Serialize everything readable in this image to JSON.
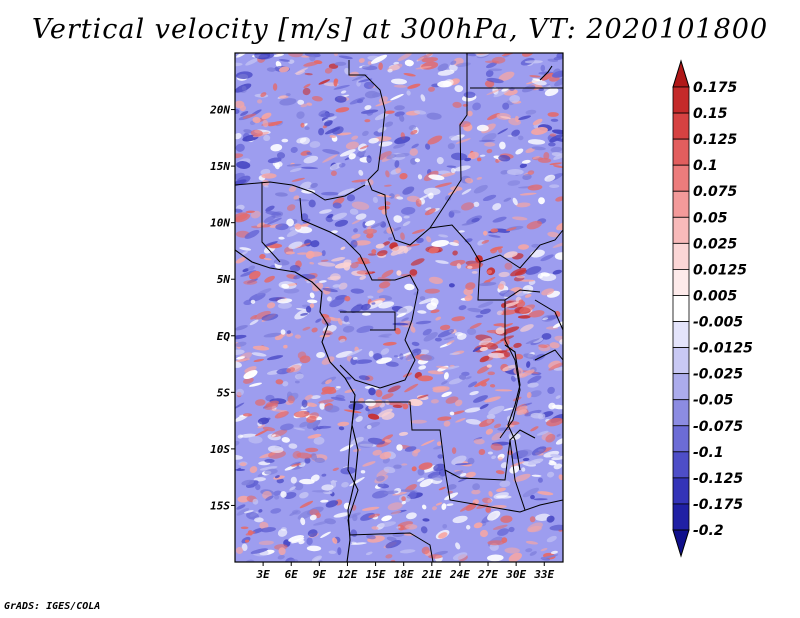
{
  "title": "Vertical velocity [m/s] at 300hPa, VT: 2020101800",
  "credit": "GrADS: IGES/COLA",
  "map": {
    "variable": "Vertical velocity",
    "units": "m/s",
    "level": "300hPa",
    "valid_time": "2020101800",
    "lon_range_deg": [
      0,
      35
    ],
    "lat_range_deg": [
      -20,
      25
    ],
    "lat_ticks": [
      {
        "value": 20,
        "label": "20N"
      },
      {
        "value": 15,
        "label": "15N"
      },
      {
        "value": 10,
        "label": "10N"
      },
      {
        "value": 5,
        "label": "5N"
      },
      {
        "value": 0,
        "label": "EQ"
      },
      {
        "value": -5,
        "label": "5S"
      },
      {
        "value": -10,
        "label": "10S"
      },
      {
        "value": -15,
        "label": "15S"
      }
    ],
    "lon_ticks": [
      {
        "value": 3,
        "label": "3E"
      },
      {
        "value": 6,
        "label": "6E"
      },
      {
        "value": 9,
        "label": "9E"
      },
      {
        "value": 12,
        "label": "12E"
      },
      {
        "value": 15,
        "label": "15E"
      },
      {
        "value": 18,
        "label": "18E"
      },
      {
        "value": 21,
        "label": "21E"
      },
      {
        "value": 24,
        "label": "24E"
      },
      {
        "value": 27,
        "label": "27E"
      },
      {
        "value": 30,
        "label": "30E"
      },
      {
        "value": 33,
        "label": "33E"
      }
    ]
  },
  "colorbar": {
    "labels": [
      "0.175",
      "0.15",
      "0.125",
      "0.1",
      "0.075",
      "0.05",
      "0.025",
      "0.0125",
      "0.005",
      "-0.005",
      "-0.0125",
      "-0.025",
      "-0.05",
      "-0.075",
      "-0.1",
      "-0.125",
      "-0.175",
      "-0.2"
    ],
    "colors": [
      "#b01818",
      "#c42a2a",
      "#d64242",
      "#e25e5e",
      "#ec7c7c",
      "#f39a9a",
      "#f8baba",
      "#fbd6d6",
      "#fdeaea",
      "#ffffff",
      "#e4e4fb",
      "#c9c9f4",
      "#acacec",
      "#8c8ce2",
      "#6c6cd6",
      "#4e4ec8",
      "#3434b8",
      "#2020a4",
      "#10108c"
    ]
  }
}
